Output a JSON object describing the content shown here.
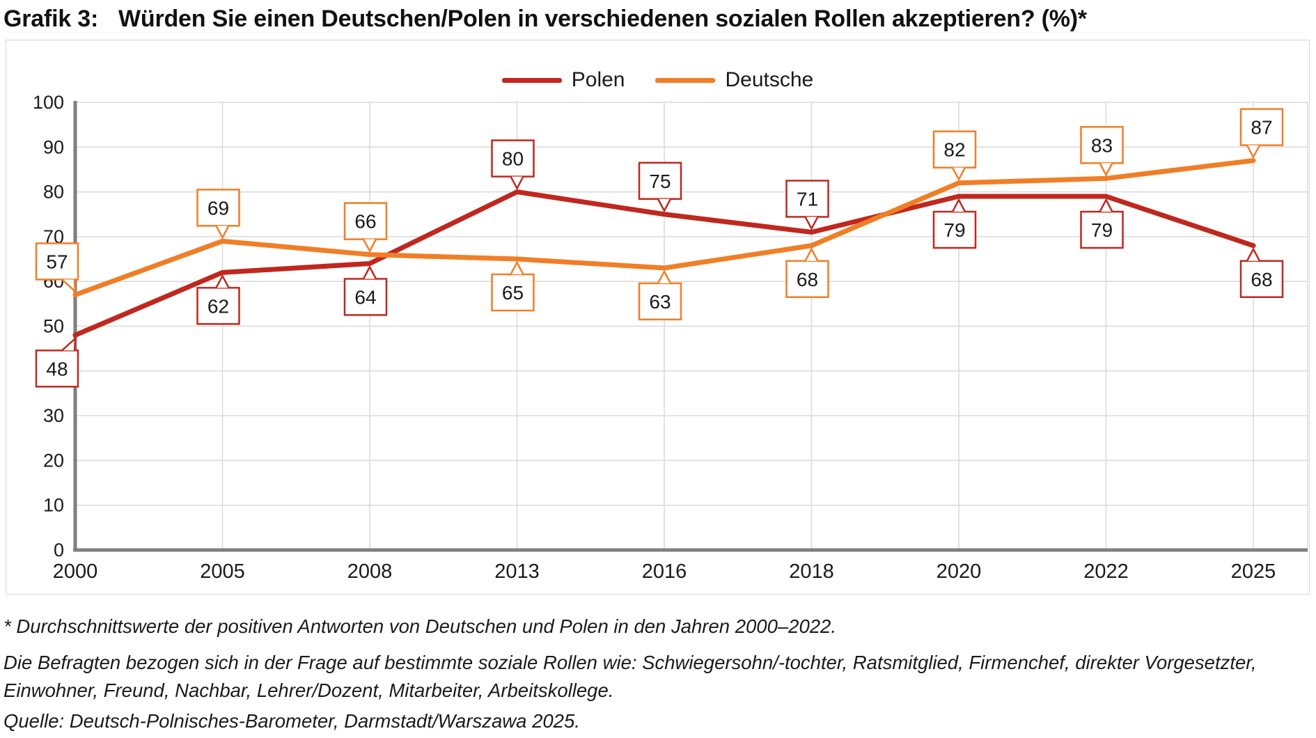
{
  "title": {
    "prefix": "Grafik 3:",
    "text": "Würden Sie einen Deutschen/Polen in verschiedenen sozialen Rollen akzeptieren? (%)*"
  },
  "chart_data": {
    "type": "line",
    "categories": [
      "2000",
      "2005",
      "2008",
      "2013",
      "2016",
      "2018",
      "2020",
      "2022",
      "2025"
    ],
    "series": [
      {
        "name": "Polen",
        "color": "#c0271e",
        "values": [
          48,
          62,
          64,
          80,
          75,
          71,
          79,
          79,
          68
        ],
        "label_side": [
          "below",
          "below",
          "below",
          "above",
          "above",
          "above",
          "below",
          "below",
          "below"
        ]
      },
      {
        "name": "Deutsche",
        "color": "#f07e26",
        "values": [
          57,
          69,
          66,
          65,
          63,
          68,
          82,
          83,
          87
        ],
        "label_side": [
          "above",
          "above",
          "above",
          "below",
          "below",
          "below",
          "above",
          "above",
          "above"
        ]
      }
    ],
    "ylim": [
      0,
      100
    ],
    "ytick_step": 10,
    "grid": true,
    "data_labels": true,
    "legend_position": "top-center",
    "colors": {
      "grid": "#d9d9d9",
      "axis": "#7f7f7f",
      "frame": "#d6d6d6",
      "text": "#1a1a1a",
      "label_box_fill": "#ffffff"
    }
  },
  "footnotes": {
    "note1": "* Durchschnittswerte der positiven Antworten von Deutschen und Polen in den Jahren 2000–2022.",
    "note2": "Die Befragten bezogen sich in der Frage auf bestimmte soziale Rollen wie: Schwiegersohn/-tochter, Ratsmitglied, Firmenchef, direkter Vorgesetzter, Einwohner, Freund, Nachbar, Lehrer/Dozent, Mitarbeiter, Arbeitskollege.",
    "source": "Quelle: Deutsch-Polnisches-Barometer, Darmstadt/Warszawa 2025."
  }
}
